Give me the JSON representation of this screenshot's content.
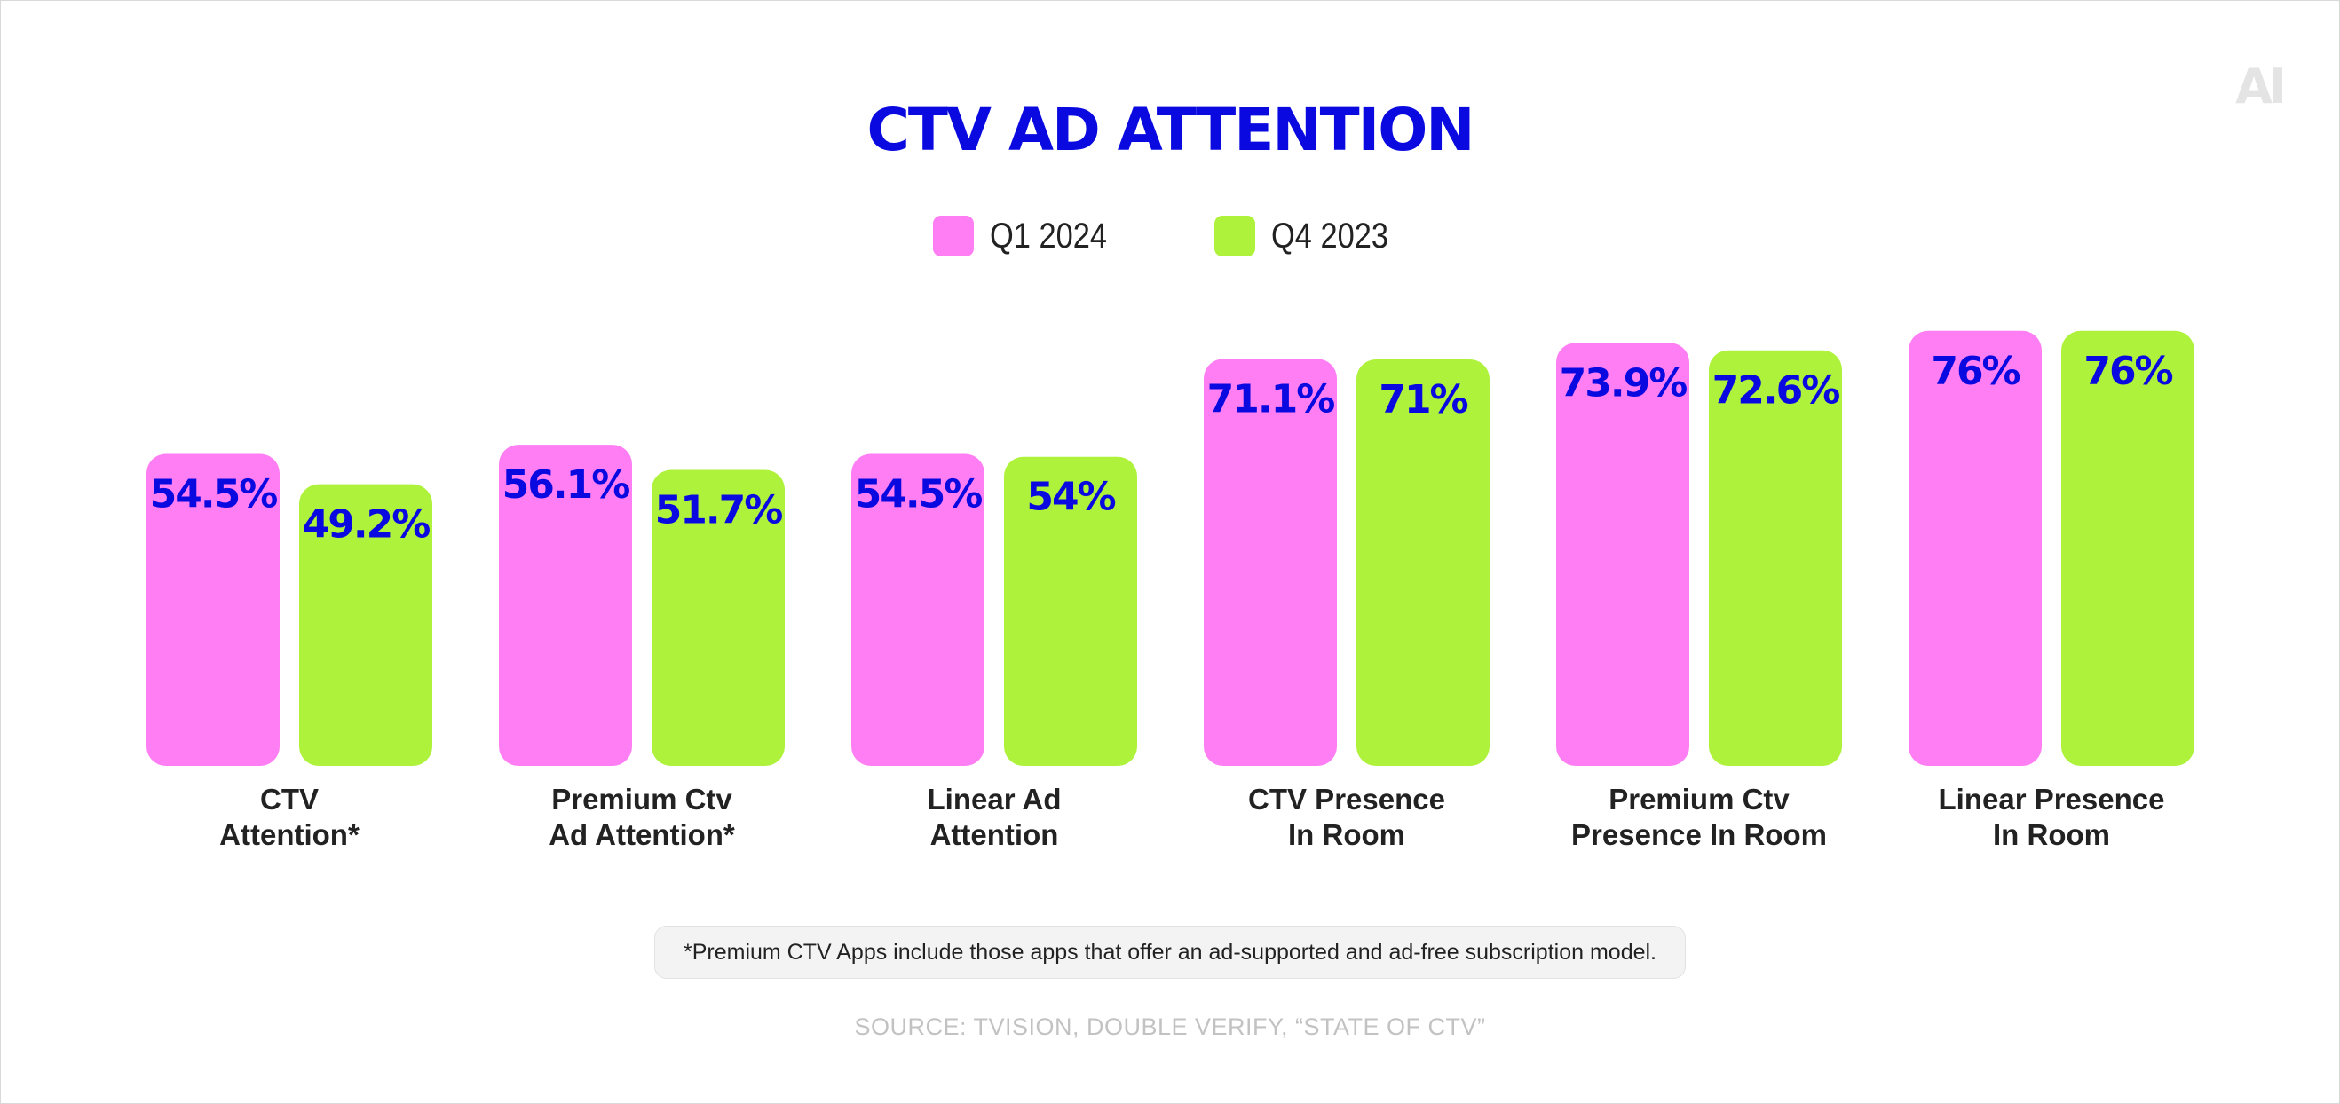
{
  "logo": "AI",
  "footnote": "*Premium CTV Apps include those apps that offer an ad-supported and ad-free subscription model.",
  "source": "SOURCE: TVISION, DOUBLE VERIFY, “STATE OF CTV”",
  "colors": {
    "title": "#0a0ae0",
    "value_text": "#0a0ae0",
    "q1_2024": "#ff7ef3",
    "q4_2023": "#aef23c"
  },
  "chart_data": {
    "type": "bar",
    "title": "CTV AD ATTENTION",
    "xlabel": "",
    "ylabel": "",
    "ylim": [
      0,
      100
    ],
    "grid": false,
    "legend_placement": "top-center",
    "categories": [
      [
        "CTV",
        "Attention*"
      ],
      [
        "Premium Ctv",
        "Ad Attention*"
      ],
      [
        "Linear Ad",
        "Attention"
      ],
      [
        "CTV Presence",
        "In Room"
      ],
      [
        "Premium Ctv",
        "Presence In Room"
      ],
      [
        "Linear Presence",
        "In Room"
      ]
    ],
    "series": [
      {
        "name": "Q1 2024",
        "color": "#ff7ef3",
        "values": [
          54.5,
          56.1,
          54.5,
          71.1,
          73.9,
          76
        ],
        "labels": [
          "54.5%",
          "56.1%",
          "54.5%",
          "71.1%",
          "73.9%",
          "76%"
        ]
      },
      {
        "name": "Q4 2023",
        "color": "#aef23c",
        "values": [
          49.2,
          51.7,
          54,
          71,
          72.6,
          76
        ],
        "labels": [
          "49.2%",
          "51.7%",
          "54%",
          "71%",
          "72.6%",
          "76%"
        ]
      }
    ]
  }
}
